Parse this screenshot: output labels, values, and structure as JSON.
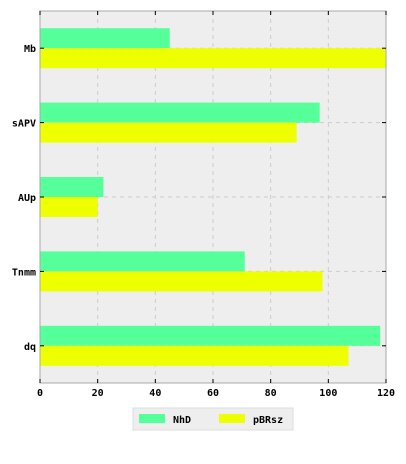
{
  "chart_data": {
    "type": "bar",
    "orientation": "horizontal",
    "categories": [
      "Mb",
      "sAPV",
      "AUp",
      "Tnmm",
      "dq"
    ],
    "series": [
      {
        "name": "NhD",
        "color": "#55ff99",
        "values": [
          45,
          97,
          22,
          71,
          118
        ]
      },
      {
        "name": "pBRsz",
        "color": "#eeff00",
        "values": [
          120,
          89,
          20,
          98,
          107
        ]
      }
    ],
    "xlim": [
      0,
      120
    ],
    "xticks": [
      "0",
      "20",
      "40",
      "60",
      "80",
      "100",
      "120"
    ],
    "grid": true,
    "legend_position": "bottom-center",
    "background_color": "#eeeeee",
    "grid_color": "#cccccc"
  }
}
